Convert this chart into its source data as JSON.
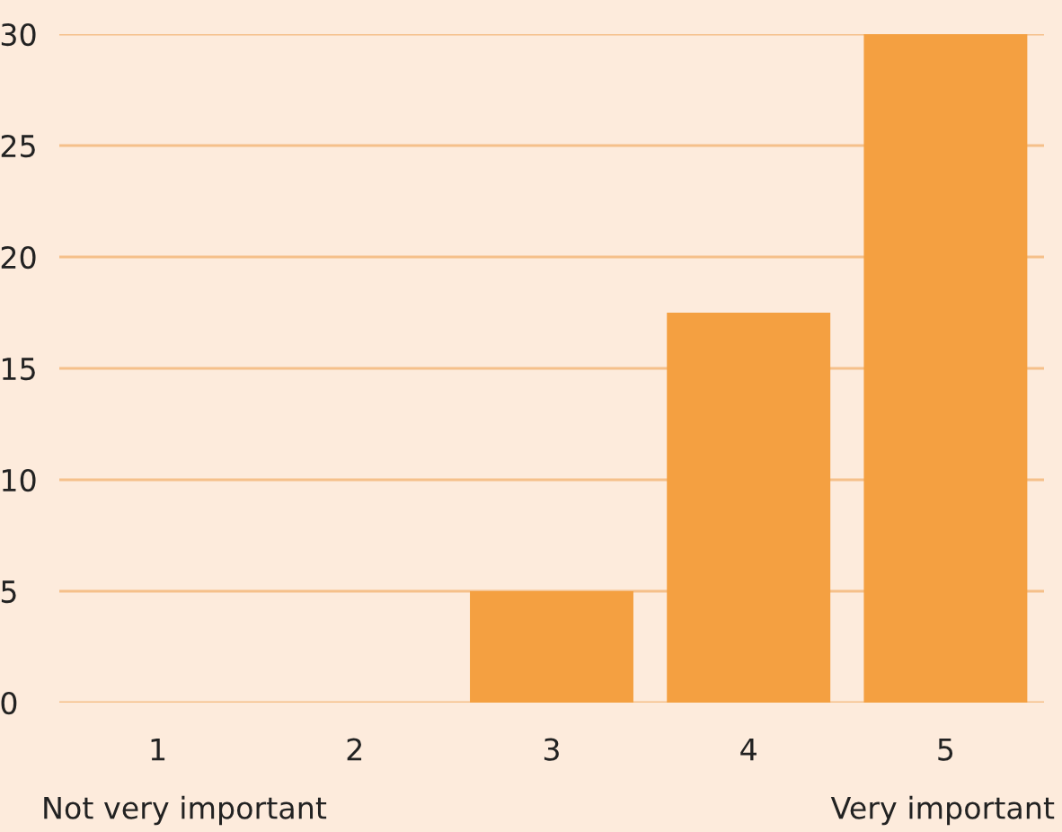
{
  "chart_data": {
    "type": "bar",
    "categories": [
      "1",
      "2",
      "3",
      "4",
      "5"
    ],
    "values": [
      0,
      0,
      5,
      17.5,
      30
    ],
    "color": "#f4a041",
    "ylim": [
      0,
      30
    ],
    "yticks": [
      0,
      5,
      10,
      15,
      20,
      25,
      30
    ],
    "grid": "y",
    "annotations": [
      "Not very important",
      "Very important"
    ]
  }
}
